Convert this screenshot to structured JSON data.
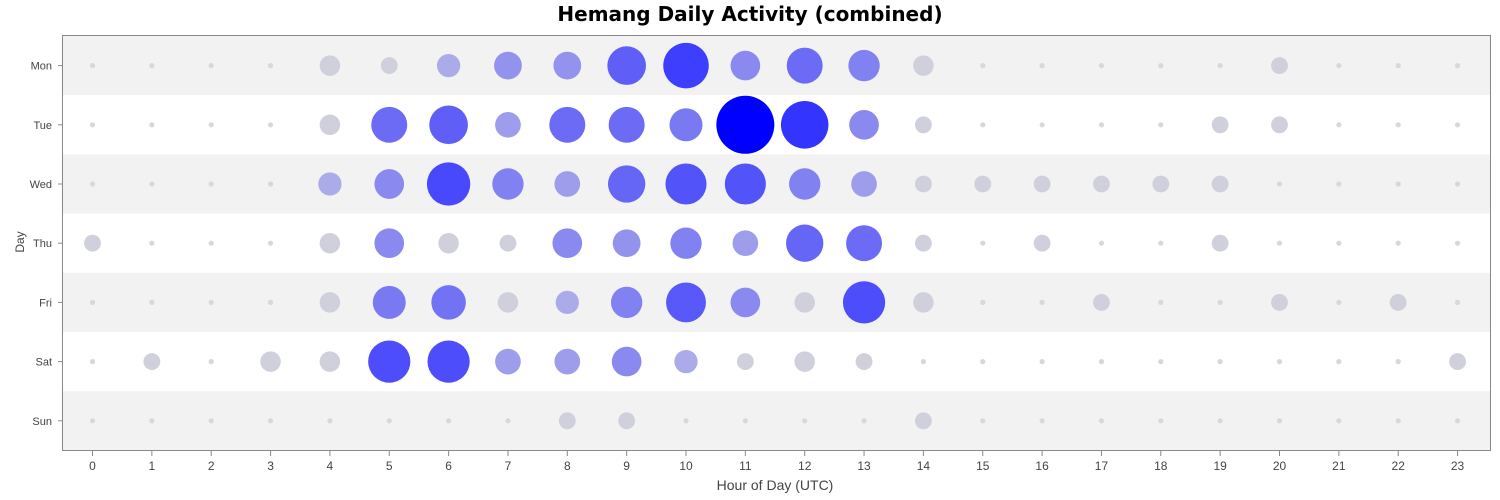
{
  "chart_data": {
    "type": "bubble",
    "title": "Hemang Daily Activity (combined)",
    "xlabel": "Hour of Day (UTC)",
    "ylabel": "Day",
    "x": [
      0,
      1,
      2,
      3,
      4,
      5,
      6,
      7,
      8,
      9,
      10,
      11,
      12,
      13,
      14,
      15,
      16,
      17,
      18,
      19,
      20,
      21,
      22,
      23
    ],
    "days": [
      "Mon",
      "Tue",
      "Wed",
      "Thu",
      "Fri",
      "Sat",
      "Sun"
    ],
    "max_value": 32,
    "values": [
      [
        0,
        0,
        0,
        0,
        2,
        1,
        3,
        5,
        5,
        12,
        18,
        6,
        10,
        7,
        2,
        0,
        0,
        0,
        0,
        0,
        1,
        0,
        0,
        0
      ],
      [
        0,
        0,
        0,
        0,
        2,
        10,
        12,
        4,
        10,
        10,
        8,
        32,
        20,
        6,
        1,
        0,
        0,
        0,
        0,
        1,
        1,
        0,
        0,
        0
      ],
      [
        0,
        0,
        0,
        0,
        3,
        6,
        16,
        7,
        4,
        11,
        14,
        14,
        7,
        4,
        1,
        1,
        1,
        1,
        1,
        1,
        0,
        0,
        0,
        0
      ],
      [
        1,
        0,
        0,
        0,
        2,
        6,
        2,
        1,
        6,
        5,
        7,
        4,
        11,
        10,
        1,
        0,
        1,
        0,
        0,
        1,
        0,
        0,
        0,
        0
      ],
      [
        0,
        0,
        0,
        0,
        2,
        8,
        9,
        2,
        3,
        7,
        13,
        6,
        2,
        15,
        2,
        0,
        0,
        1,
        0,
        0,
        1,
        0,
        1,
        0
      ],
      [
        0,
        1,
        0,
        2,
        2,
        15,
        15,
        4,
        4,
        6,
        3,
        1,
        2,
        1,
        0,
        0,
        0,
        0,
        0,
        0,
        0,
        0,
        0,
        1
      ],
      [
        0,
        0,
        0,
        0,
        0,
        0,
        0,
        0,
        1,
        1,
        0,
        0,
        0,
        0,
        1,
        0,
        0,
        0,
        0,
        0,
        0,
        0,
        0,
        0
      ]
    ],
    "grid": false,
    "legend": "none"
  }
}
